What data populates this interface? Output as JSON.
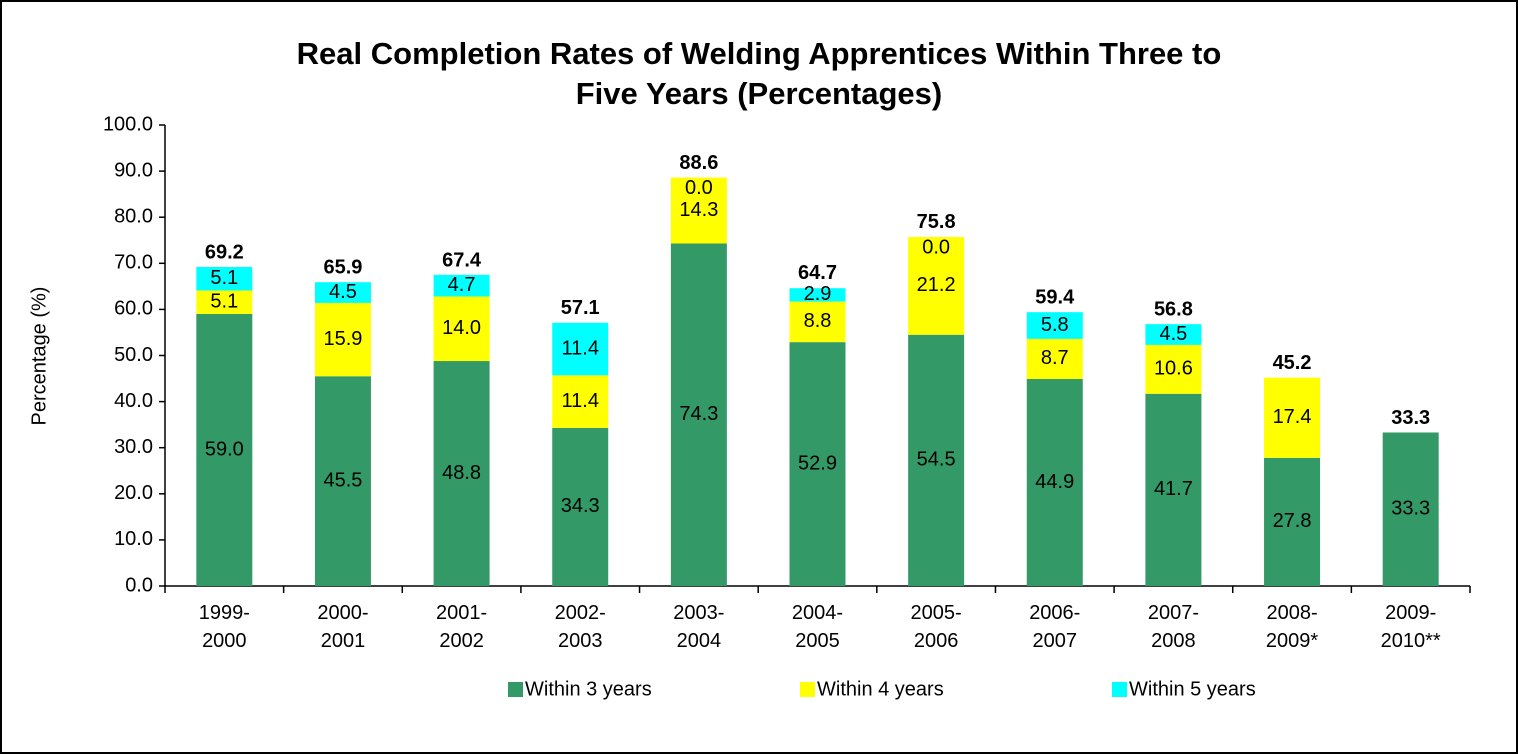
{
  "chart_data": {
    "type": "stacked_bar",
    "title": "Real Completion Rates of Welding Apprentices Within Three to",
    "title_line2": "Five Years (Percentages)",
    "y_label": "Percentage (%)",
    "categories": [
      "1999-\n2000",
      "2000-\n2001",
      "2001-\n2002",
      "2002-\n2003",
      "2003-\n2004",
      "2004-\n2005",
      "2005-\n2006",
      "2006-\n2007",
      "2007-\n2008",
      "2008-\n2009*",
      "2009-\n2010**"
    ],
    "series": [
      {
        "name": "Within 3 years",
        "color": "#339966",
        "values": [
          59.0,
          45.5,
          48.8,
          34.3,
          74.3,
          52.9,
          54.5,
          44.9,
          41.7,
          27.8,
          33.3
        ],
        "value_labels": [
          "59.0",
          "45.5",
          "48.8",
          "34.3",
          "74.3",
          "52.9",
          "54.5",
          "44.9",
          "41.7",
          "27.8",
          "33.3"
        ]
      },
      {
        "name": "Within 4 years",
        "color": "#ffff00",
        "values": [
          5.1,
          15.9,
          14.0,
          11.4,
          14.3,
          8.8,
          21.2,
          8.7,
          10.6,
          17.4,
          null
        ],
        "value_labels": [
          "5.1",
          "15.9",
          "14.0",
          "11.4",
          "14.3",
          "8.8",
          "21.2",
          "8.7",
          "10.6",
          "17.4",
          null
        ]
      },
      {
        "name": "Within 5 years",
        "color": "#00ffff",
        "values": [
          5.1,
          4.5,
          4.7,
          11.4,
          0.0,
          2.9,
          0.0,
          5.8,
          4.5,
          null,
          null
        ],
        "value_labels": [
          "5.1",
          "4.5",
          "4.7",
          "11.4",
          "0.0",
          "2.9",
          "0.0",
          "5.8",
          "4.5",
          null,
          null
        ]
      }
    ],
    "totals": [
      69.2,
      65.9,
      67.4,
      57.1,
      88.6,
      64.7,
      75.8,
      59.4,
      56.8,
      45.2,
      33.3
    ],
    "ylim": [
      0,
      100
    ],
    "yticks": [
      {
        "value": 0,
        "label": "0.0"
      },
      {
        "value": 10,
        "label": "10.0"
      },
      {
        "value": 20,
        "label": "20.0"
      },
      {
        "value": 30,
        "label": "30.0"
      },
      {
        "value": 40,
        "label": "40.0"
      },
      {
        "value": 50,
        "label": "50.0"
      },
      {
        "value": 60,
        "label": "60.0"
      },
      {
        "value": 70,
        "label": "70.0"
      },
      {
        "value": 80,
        "label": "80.0"
      },
      {
        "value": 90,
        "label": "90.0"
      },
      {
        "value": 100,
        "label": "100.0"
      }
    ],
    "grid": false,
    "legend": "bottom"
  }
}
